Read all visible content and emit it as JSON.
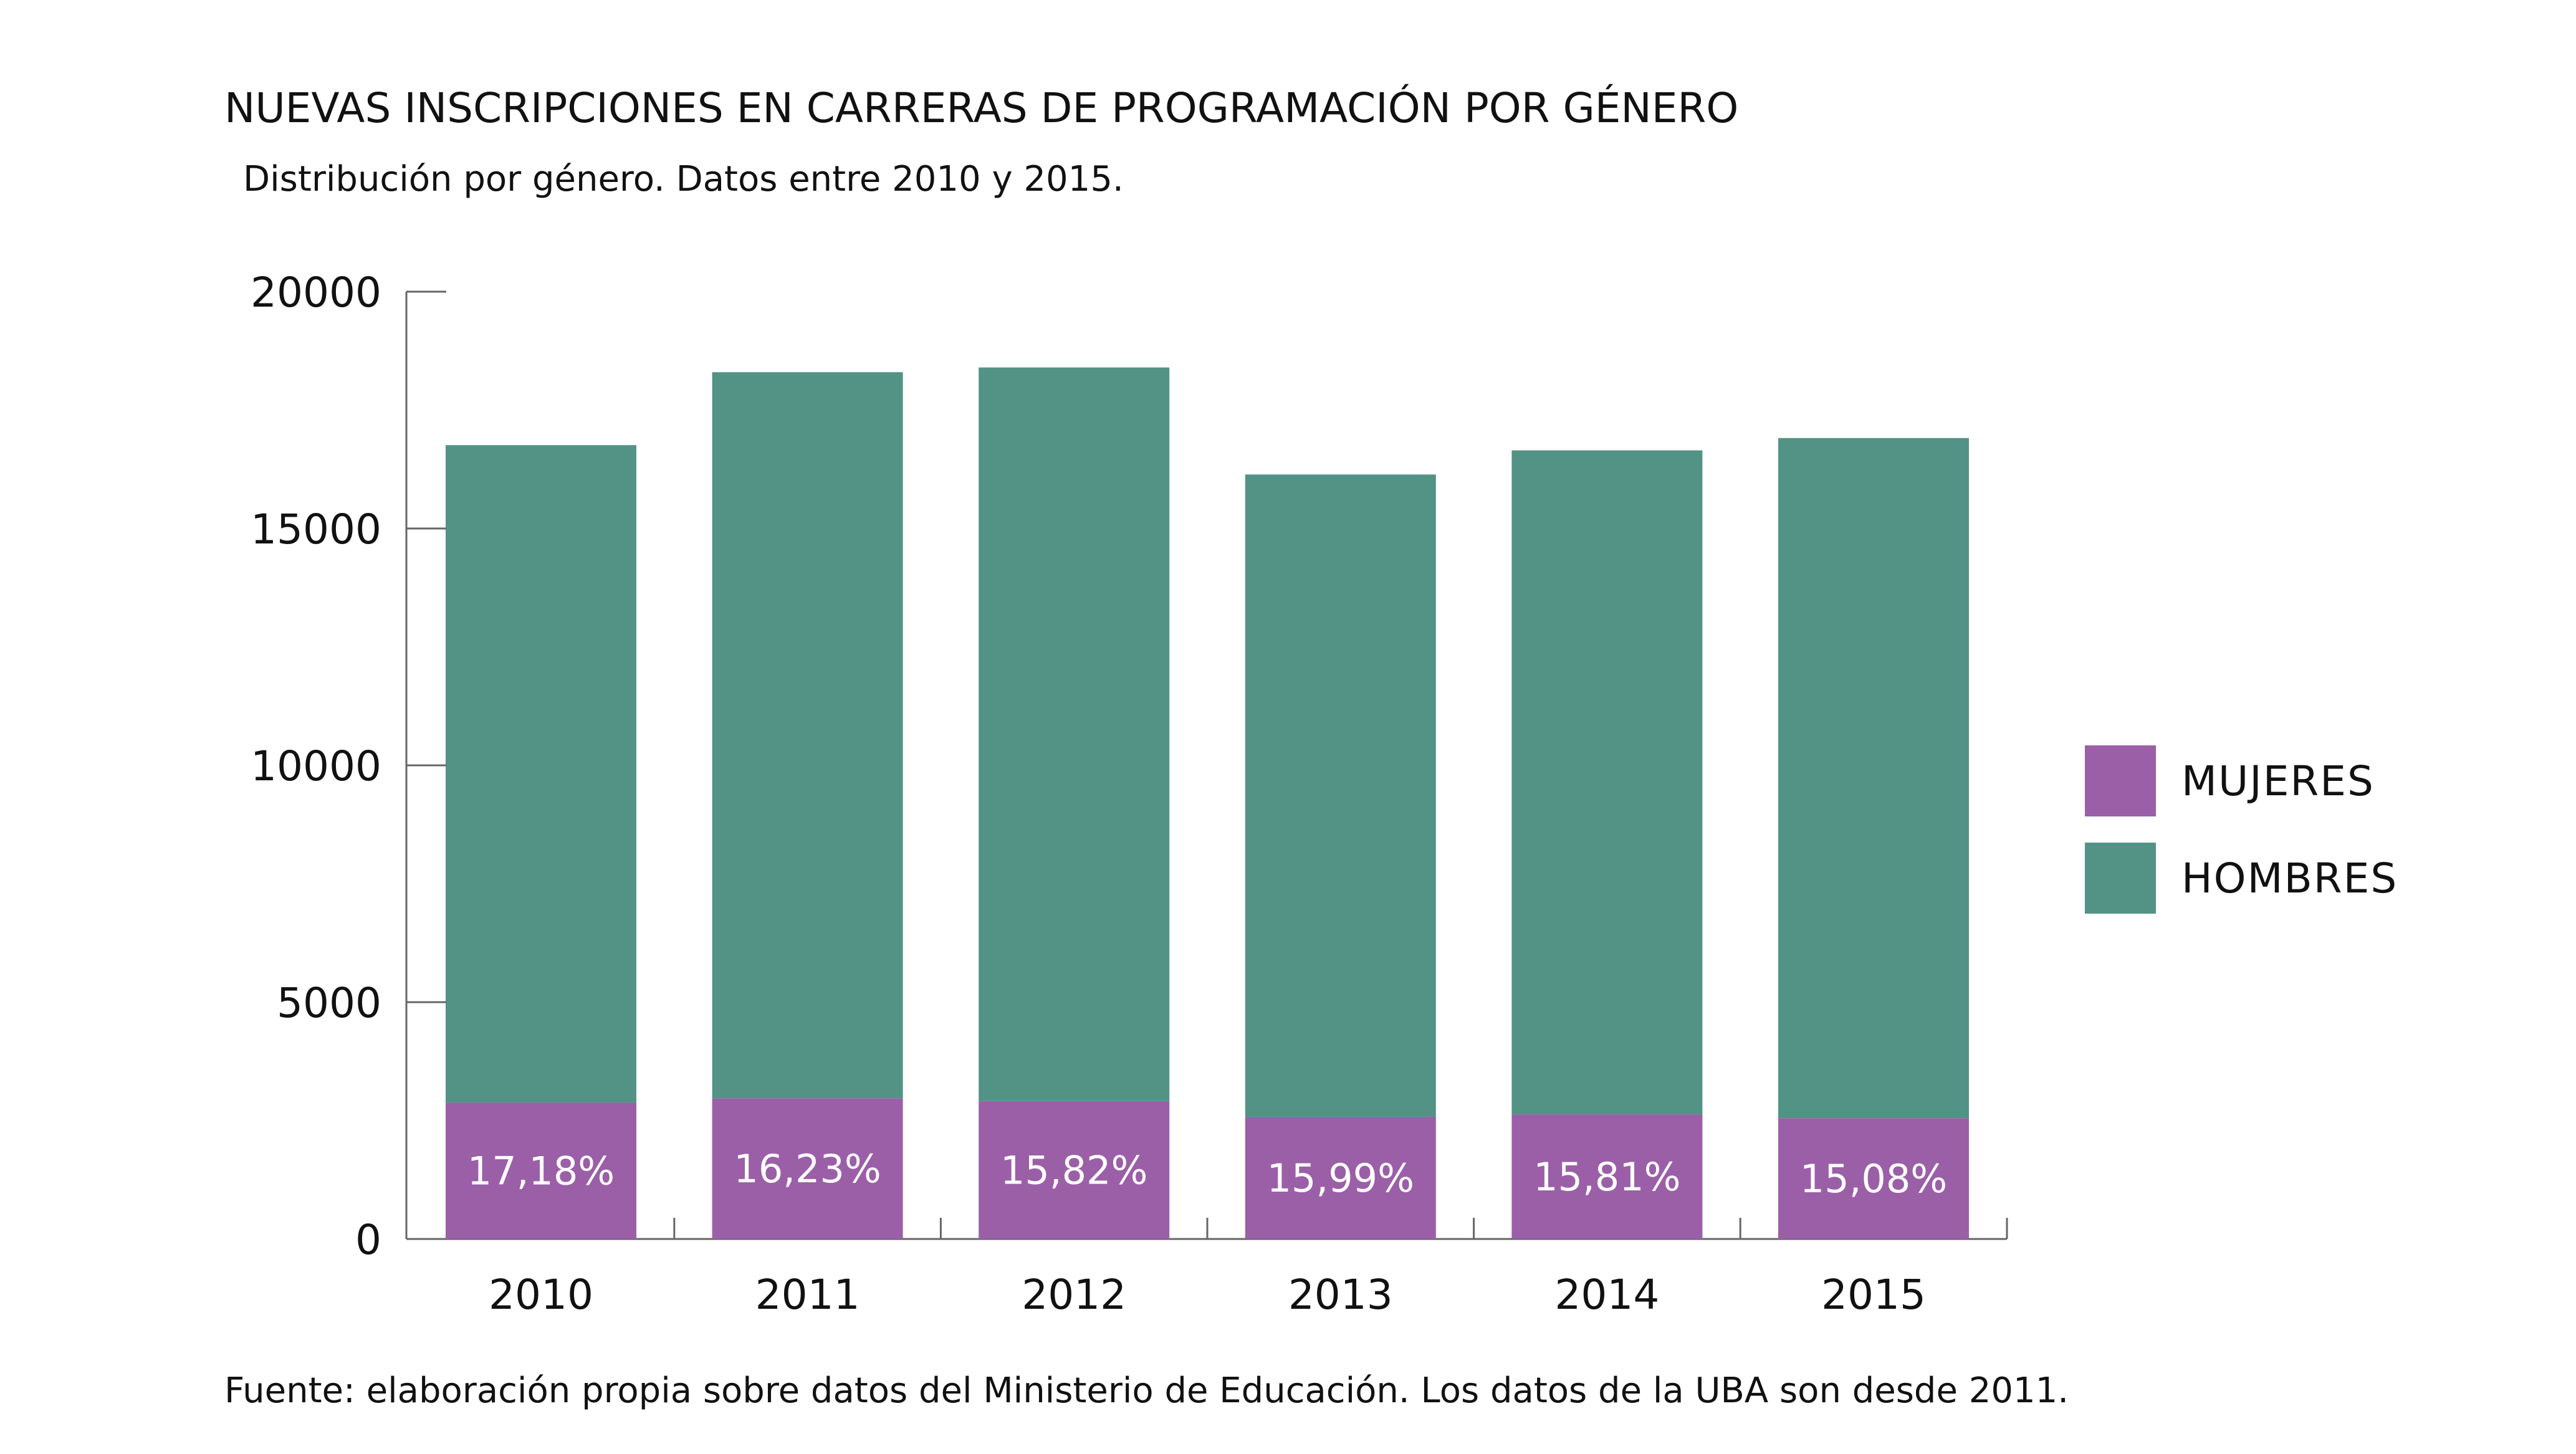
{
  "chart_data": {
    "type": "bar",
    "stacked": true,
    "title": "NUEVAS INSCRIPCIONES EN CARRERAS DE PROGRAMACIÓN POR GÉNERO",
    "subtitle": "Distribución por género. Datos entre 2010 y 2015.",
    "xlabel": "",
    "ylabel": "",
    "categories": [
      "2010",
      "2011",
      "2012",
      "2013",
      "2014",
      "2015"
    ],
    "ylim": [
      0,
      20000
    ],
    "yticks": [
      "0",
      "5000",
      "10000",
      "15000",
      "20000"
    ],
    "series": [
      {
        "name": "MUJERES",
        "color": "#9b5fa8",
        "values": [
          2880,
          2970,
          2910,
          2580,
          2630,
          2550
        ],
        "labels": [
          "17,18%",
          "16,23%",
          "15,82%",
          "15,99%",
          "15,81%",
          "15,08%"
        ]
      },
      {
        "name": "HOMBRES",
        "color": "#529386",
        "values": [
          13880,
          15330,
          15490,
          13560,
          14020,
          14360
        ]
      }
    ],
    "legend_position": "right",
    "grid": false,
    "source": "Fuente: elaboración propia sobre datos del Ministerio de Educación. Los datos de la UBA son desde 2011."
  }
}
